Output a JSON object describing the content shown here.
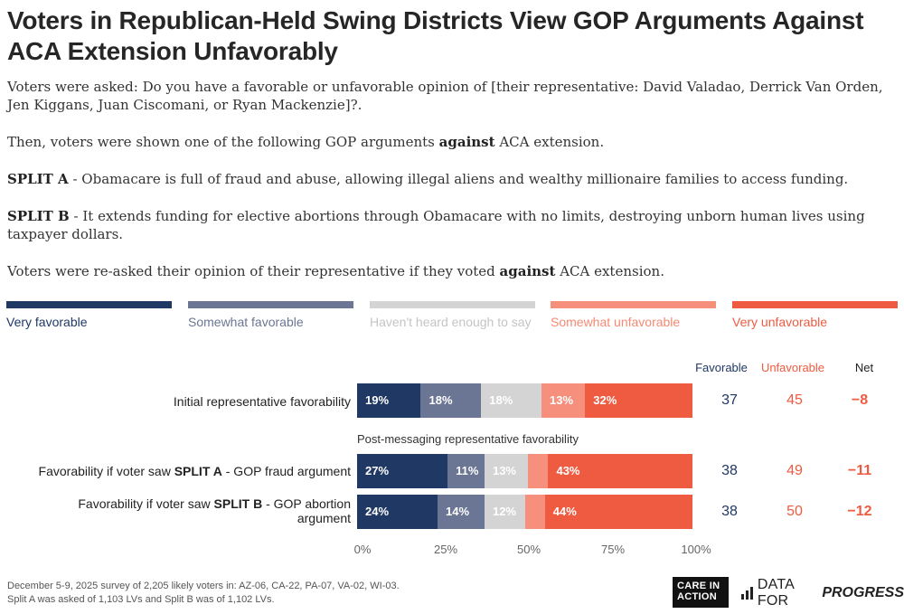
{
  "title": "Voters in Republican-Held Swing Districts View GOP Arguments Against ACA Extension Unfavorably",
  "intro": {
    "p1": "Voters were asked: Do you have a favorable or unfavorable opinion of [their representative: David Valadao, Derrick Van Orden, Jen Kiggans, Juan Ciscomani, or Ryan Mackenzie]?.",
    "p2_pre": "Then, voters were shown one of the following GOP arguments ",
    "p2_bold": "against",
    "p2_post": " ACA extension.",
    "p3_bold": "SPLIT A",
    "p3_text": " - Obamacare is full of fraud and abuse, allowing illegal aliens and wealthy millionaire families to access funding.",
    "p4_bold": "SPLIT B",
    "p4_text": " - It extends funding for elective abortions through Obamacare with no limits, destroying unborn human lives using taxpayer dollars.",
    "p5_pre": "Voters were re-asked their opinion of their representative if they voted ",
    "p5_bold": "against",
    "p5_post": " ACA extension."
  },
  "colors": {
    "very_favorable": "#1f3864",
    "somewhat_favorable": "#6b7594",
    "havent_heard": "#d4d4d4",
    "somewhat_unfavorable": "#f6907c",
    "very_unfavorable": "#ef5b40"
  },
  "legend": [
    {
      "label": "Very favorable",
      "color": "#1f3864",
      "text_color": "#1f3864"
    },
    {
      "label": "Somewhat favorable",
      "color": "#6b7594",
      "text_color": "#6b7594"
    },
    {
      "label": "Haven't heard enough to say",
      "color": "#d4d4d4",
      "text_color": "#c4c4c4"
    },
    {
      "label": "Somewhat unfavorable",
      "color": "#f6907c",
      "text_color": "#f48a74"
    },
    {
      "label": "Very unfavorable",
      "color": "#ef5b40",
      "text_color": "#ef5b40"
    }
  ],
  "columns": {
    "favorable": "Favorable",
    "unfavorable": "Unfavorable",
    "net": "Net"
  },
  "subheading": "Post-messaging representative favorability",
  "chart_data": {
    "type": "bar",
    "orientation": "horizontal-stacked",
    "xlim": [
      0,
      100
    ],
    "ticks": [
      "0%",
      "25%",
      "50%",
      "75%",
      "100%"
    ],
    "series_names": [
      "Very favorable",
      "Somewhat favorable",
      "Haven't heard enough to say",
      "Somewhat unfavorable",
      "Very unfavorable"
    ],
    "rows": [
      {
        "label": "Initial representative favorability",
        "values": [
          19,
          18,
          18,
          13,
          32
        ],
        "labels": [
          "19%",
          "18%",
          "18%",
          "13%",
          "32%"
        ],
        "favorable": "37",
        "unfavorable": "45",
        "net": "−8"
      },
      {
        "label_pre": "Favorability if voter saw ",
        "label_bold": "SPLIT A",
        "label_post": " - GOP fraud argument",
        "values": [
          27,
          11,
          13,
          6,
          43
        ],
        "labels": [
          "27%",
          "11%",
          "13%",
          "",
          "43%"
        ],
        "favorable": "38",
        "unfavorable": "49",
        "net": "−11"
      },
      {
        "label_pre": "Favorability if voter saw ",
        "label_bold": "SPLIT B",
        "label_post": " - GOP abortion argument",
        "values": [
          24,
          14,
          12,
          6,
          44
        ],
        "labels": [
          "24%",
          "14%",
          "12%",
          "",
          "44%"
        ],
        "favorable": "38",
        "unfavorable": "50",
        "net": "−12"
      }
    ]
  },
  "footer": {
    "line1": "December 5-9, 2025 survey of 2,205 likely voters in: AZ-06, CA-22, PA-07, VA-02, WI-03.",
    "line2": "Split A was asked of 1,103 LVs and Split B was of 1,102 LVs."
  },
  "logos": {
    "care_in_action": "CARE IN ACTION",
    "dfp_a": "DATA FOR",
    "dfp_b": "PROGRESS"
  }
}
